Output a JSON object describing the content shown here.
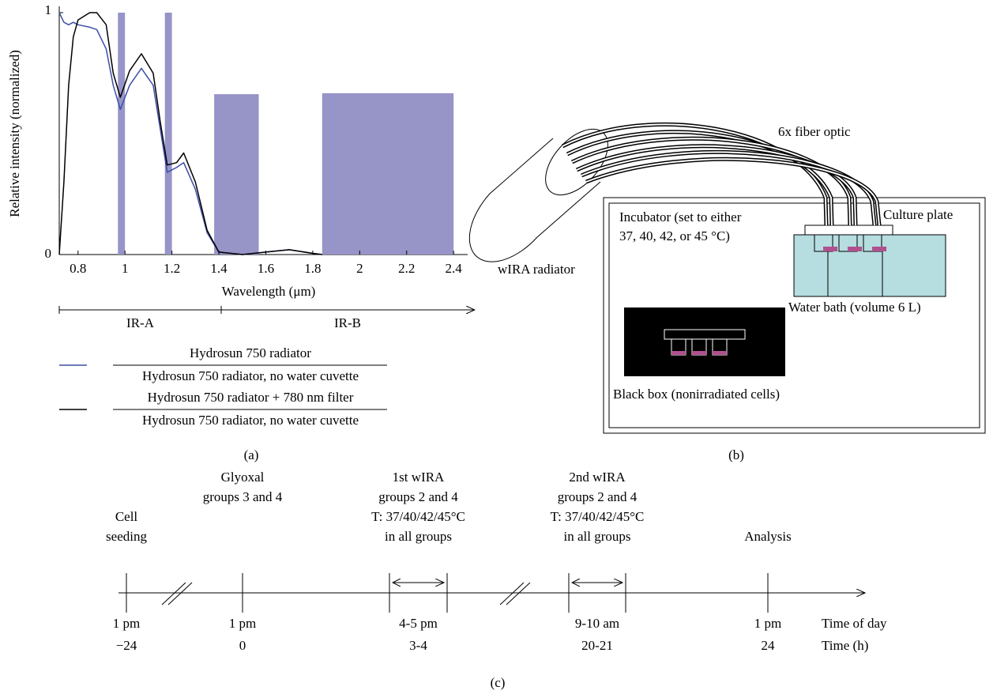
{
  "chart_data": {
    "type": "line",
    "y_label": "Relative intensity (normalized)",
    "x_label": "Wavelength (μm)",
    "caption": "(a)",
    "x": [
      0.72,
      0.74,
      0.76,
      0.78,
      0.8,
      0.85,
      0.88,
      0.92,
      0.95,
      0.98,
      1.02,
      1.07,
      1.12,
      1.15,
      1.18,
      1.22,
      1.25,
      1.3,
      1.35,
      1.4,
      1.5,
      1.6,
      1.7,
      1.8,
      1.84
    ],
    "series": [
      {
        "name": "Hydrosun 750 radiator",
        "ratio_to": "Hydrosun 750 radiator, no water cuvette",
        "color": "#3b4ea6",
        "values": [
          1.0,
          0.96,
          0.95,
          0.96,
          0.95,
          0.94,
          0.93,
          0.85,
          0.7,
          0.6,
          0.7,
          0.77,
          0.7,
          0.52,
          0.34,
          0.36,
          0.38,
          0.27,
          0.09,
          0.01,
          0,
          0.01,
          0.02,
          0.005,
          0
        ]
      },
      {
        "name": "Hydrosun 750 radiator + 780 nm filter",
        "ratio_to": "Hydrosun 750 radiator, no water cuvette",
        "color": "#000000",
        "values": [
          0,
          0.3,
          0.7,
          0.9,
          0.97,
          1.0,
          1.0,
          0.95,
          0.75,
          0.65,
          0.76,
          0.83,
          0.75,
          0.55,
          0.37,
          0.38,
          0.42,
          0.3,
          0.1,
          0.01,
          0,
          0.01,
          0.02,
          0.005,
          0
        ]
      }
    ],
    "bands": {
      "color": "#9794c8",
      "start": [
        0.97,
        1.17,
        1.38,
        1.84
      ],
      "end": [
        1.0,
        1.2,
        1.57,
        2.4
      ],
      "height": [
        1.0,
        1.0,
        0.663,
        0.667
      ]
    },
    "ranges": [
      {
        "label": "IR-A",
        "start": 0.72,
        "end": 1.41
      },
      {
        "label": "IR-B",
        "start": 1.41,
        "end": 2.49
      }
    ],
    "xlim": [
      0.72,
      2.46
    ],
    "ylim": [
      0,
      1
    ],
    "xticks": [
      0.8,
      1,
      1.2,
      1.4,
      1.6,
      1.8,
      2,
      2.2,
      2.4
    ],
    "yticks": [
      0,
      1
    ]
  },
  "diagram": {
    "caption": "(b)",
    "fiber": "6x fiber optic",
    "radiator": "wIRA radiator",
    "incubator": [
      "Incubator (set to either",
      "37, 40, 42, or 45 °C)"
    ],
    "plate": "Culture plate",
    "water_bath": "Water bath (volume 6 L)",
    "black_box": "Black box (nonirradiated cells)"
  },
  "timeline": {
    "caption": "(c)",
    "row_labels": [
      "Time of day",
      "Time (h)"
    ],
    "events": [
      {
        "lines": [
          "Cell",
          "seeding"
        ],
        "time_of_day": "1 pm",
        "hours": "−24"
      },
      {
        "lines": [
          "Glyoxal",
          "groups 3 and 4"
        ],
        "time_of_day": "1 pm",
        "hours": "0"
      },
      {
        "lines": [
          "1st wIRA",
          "groups 2 and 4",
          "T: 37/40/42/45°C",
          "in all groups"
        ],
        "time_of_day": "4-5 pm",
        "hours": "3-4"
      },
      {
        "lines": [
          "2nd wIRA",
          "groups 2 and 4",
          "T: 37/40/42/45°C",
          "in all groups"
        ],
        "time_of_day": "9-10 am",
        "hours": "20-21"
      },
      {
        "lines": [
          "Analysis"
        ],
        "time_of_day": "1 pm",
        "hours": "24"
      }
    ]
  }
}
